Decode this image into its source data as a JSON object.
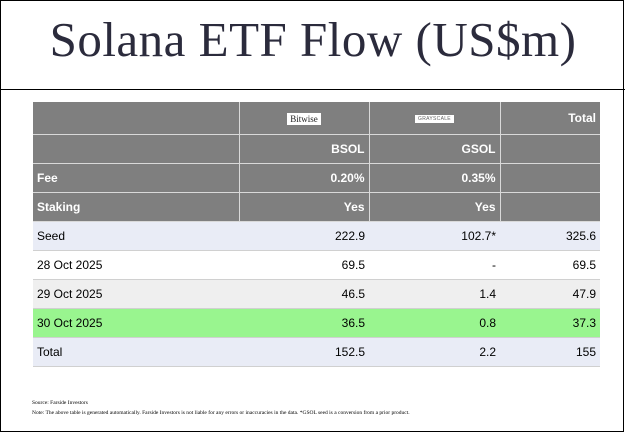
{
  "title": "Solana ETF Flow (US$m)",
  "table": {
    "logos": {
      "bitwise": "Bitwise",
      "grayscale": "GRAYSCALE",
      "total": "Total"
    },
    "tickers": [
      "BSOL",
      "GSOL"
    ],
    "fee": {
      "label": "Fee",
      "values": [
        "0.20%",
        "0.35%"
      ]
    },
    "staking": {
      "label": "Staking",
      "values": [
        "Yes",
        "Yes"
      ]
    },
    "rows": [
      {
        "label": "Seed",
        "values": [
          "222.9",
          "102.7*",
          "325.6"
        ]
      },
      {
        "label": "28 Oct 2025",
        "values": [
          "69.5",
          "-",
          "69.5"
        ]
      },
      {
        "label": "29 Oct 2025",
        "values": [
          "46.5",
          "1.4",
          "47.9"
        ]
      },
      {
        "label": "30 Oct 2025",
        "values": [
          "36.5",
          "0.8",
          "37.3"
        ]
      },
      {
        "label": "Total",
        "values": [
          "152.5",
          "2.2",
          "155"
        ]
      }
    ]
  },
  "notes": {
    "source": "Source: Farside Investors",
    "note": "Note: The above table is generated automatically. Farside Investors is not liable for any errors or inaccuracies in the data. *GSOL seed is a conversion from a prior product."
  },
  "colors": {
    "header_bg": "#7f7f7f",
    "highlight_row": "#99f58f",
    "light_row": "#e9ecf6",
    "title_text": "#2b2b3c"
  }
}
